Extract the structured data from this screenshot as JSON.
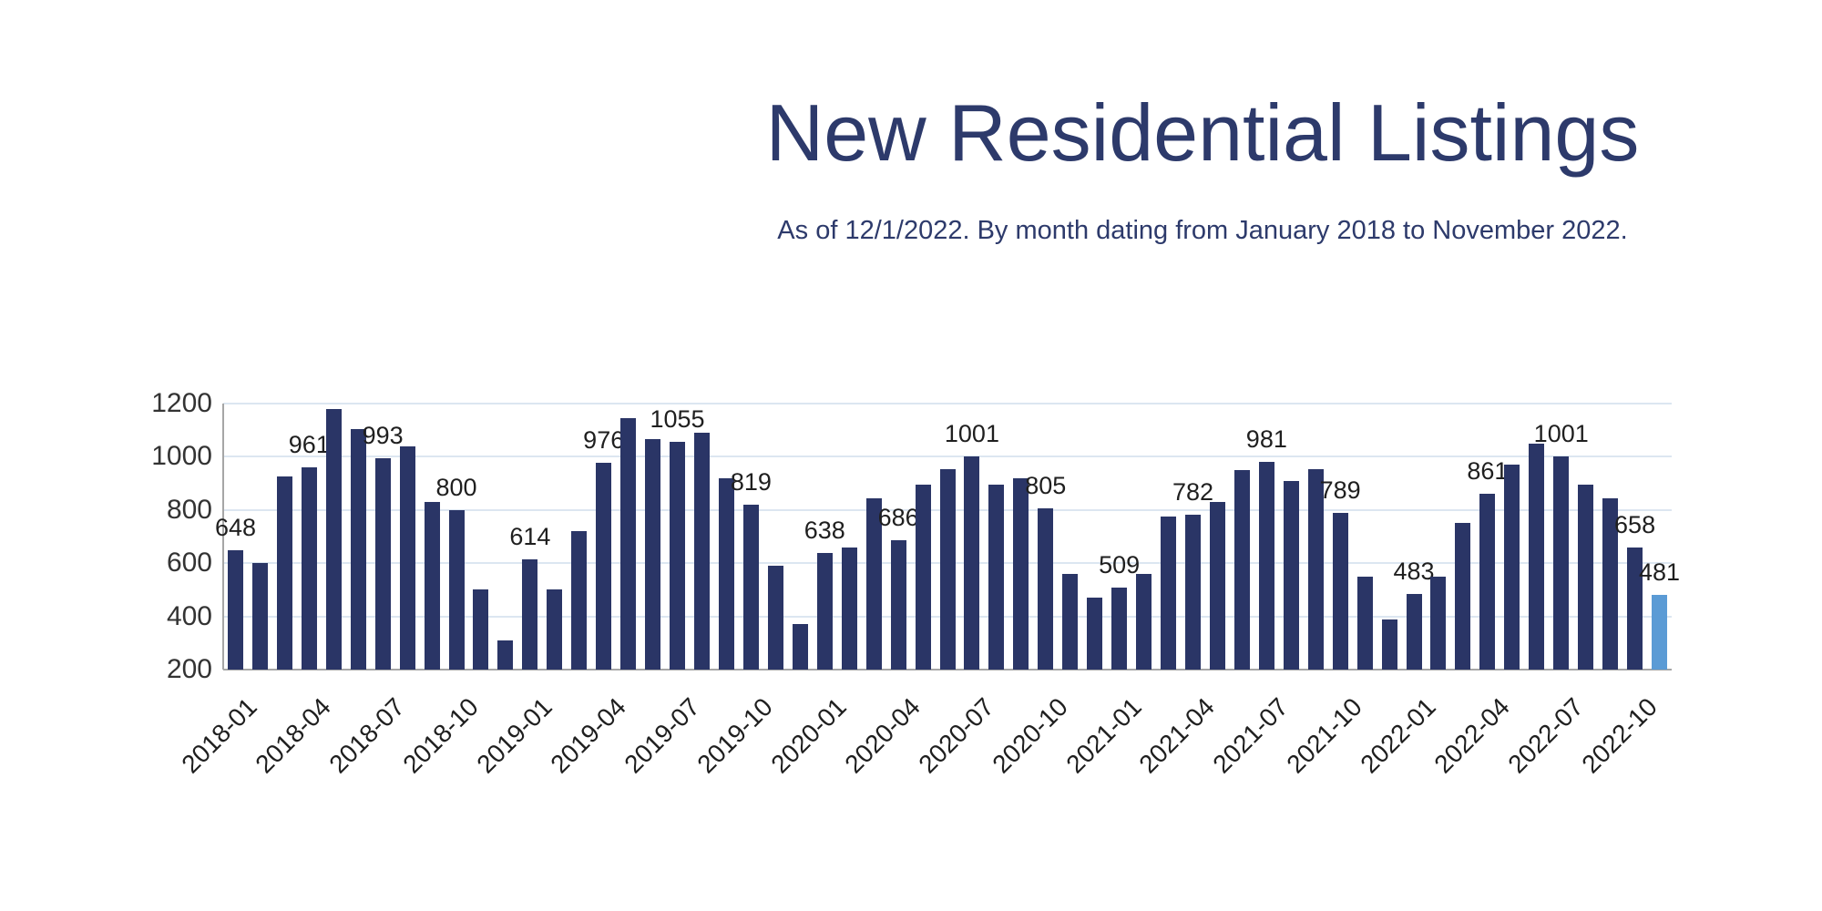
{
  "header": {
    "title": "New Residential Listings",
    "subtitle": "As of 12/1/2022. By month dating from January 2018 to November 2022."
  },
  "chart_data": {
    "type": "bar",
    "title": "New Residential Listings",
    "subtitle": "As of 12/1/2022. By month dating from January 2018 to November 2022.",
    "x": [
      "2018-01",
      "2018-02",
      "2018-03",
      "2018-04",
      "2018-05",
      "2018-06",
      "2018-07",
      "2018-08",
      "2018-09",
      "2018-10",
      "2018-11",
      "2018-12",
      "2019-01",
      "2019-02",
      "2019-03",
      "2019-04",
      "2019-05",
      "2019-06",
      "2019-07",
      "2019-08",
      "2019-09",
      "2019-10",
      "2019-11",
      "2019-12",
      "2020-01",
      "2020-02",
      "2020-03",
      "2020-04",
      "2020-05",
      "2020-06",
      "2020-07",
      "2020-08",
      "2020-09",
      "2020-10",
      "2020-11",
      "2020-12",
      "2021-01",
      "2021-02",
      "2021-03",
      "2021-04",
      "2021-05",
      "2021-06",
      "2021-07",
      "2021-08",
      "2021-09",
      "2021-10",
      "2021-11",
      "2021-12",
      "2022-01",
      "2022-02",
      "2022-03",
      "2022-04",
      "2022-05",
      "2022-06",
      "2022-07",
      "2022-08",
      "2022-09",
      "2022-10",
      "2022-11"
    ],
    "values": [
      648,
      600,
      925,
      961,
      1180,
      1105,
      993,
      1040,
      830,
      800,
      500,
      310,
      614,
      500,
      720,
      976,
      1145,
      1065,
      1055,
      1090,
      920,
      819,
      590,
      370,
      638,
      660,
      845,
      686,
      895,
      955,
      1001,
      895,
      920,
      805,
      560,
      470,
      509,
      560,
      775,
      782,
      830,
      950,
      981,
      910,
      955,
      789,
      550,
      390,
      483,
      550,
      750,
      861,
      970,
      1050,
      1001,
      895,
      845,
      658,
      481
    ],
    "data_label_indices": [
      0,
      3,
      6,
      9,
      12,
      15,
      18,
      21,
      24,
      27,
      30,
      33,
      36,
      39,
      42,
      45,
      48,
      51,
      54,
      57,
      58
    ],
    "x_tick_labels": [
      "2018-01",
      "2018-04",
      "2018-07",
      "2018-10",
      "2019-01",
      "2019-04",
      "2019-07",
      "2019-10",
      "2020-01",
      "2020-04",
      "2020-07",
      "2020-10",
      "2021-01",
      "2021-04",
      "2021-07",
      "2021-10",
      "2022-01",
      "2022-04",
      "2022-07",
      "2022-10"
    ],
    "x_tick_interval": 3,
    "y_ticks": [
      200,
      400,
      600,
      800,
      1000,
      1200
    ],
    "ylim": [
      200,
      1200
    ],
    "grid": "horizontal",
    "legend_position": "none",
    "bar_color": "#2a3566",
    "highlight_bar_color": "#5b9bd5",
    "highlight_bar_index": 58,
    "gridline_color": "#dce6f1",
    "axis_line_color": "#a6a6a6",
    "title_color": "#2d3a6b",
    "label_text_color": "#1f1f1f"
  }
}
